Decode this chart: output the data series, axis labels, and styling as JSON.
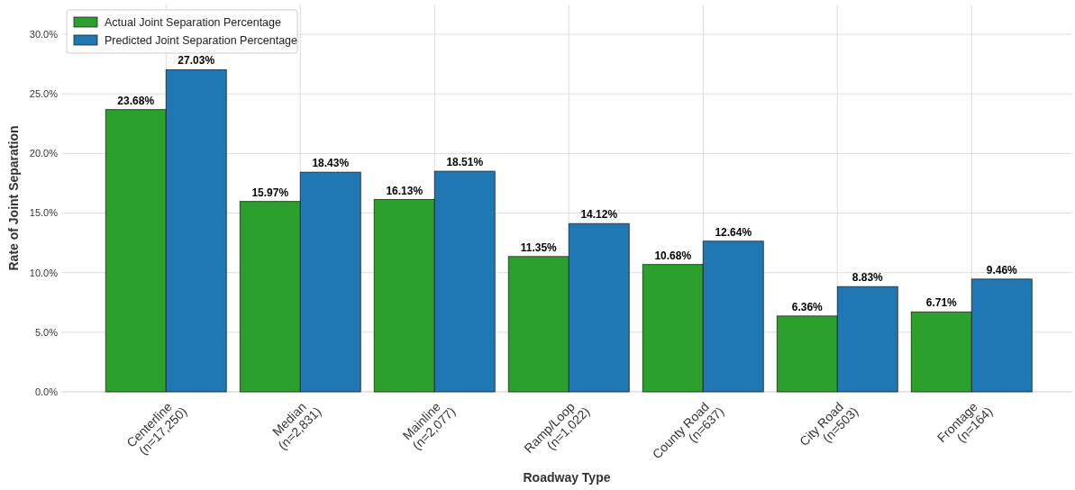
{
  "chart_data": {
    "type": "bar",
    "xlabel": "Roadway Type",
    "ylabel": "Rate of Joint Separation",
    "categories": [
      "Centerline\n(n=17,250)",
      "Median\n(n=2,831)",
      "Mainline\n(n=2,077)",
      "Ramp/Loop\n(n=1,022)",
      "County Road\n(n=637)",
      "City Road\n(n=503)",
      "Frontage\n(n=164)"
    ],
    "series": [
      {
        "name": "Actual Joint Separation Percentage",
        "color": "#2ca02c",
        "values": [
          23.68,
          15.97,
          16.13,
          11.35,
          10.68,
          6.36,
          6.71
        ],
        "value_labels": [
          "23.68%",
          "15.97%",
          "16.13%",
          "11.35%",
          "10.68%",
          "6.36%",
          "6.71%"
        ]
      },
      {
        "name": "Predicted Joint Separation Percentage",
        "color": "#1f77b4",
        "values": [
          27.03,
          18.43,
          18.51,
          14.12,
          12.64,
          8.83,
          9.46
        ],
        "value_labels": [
          "27.03%",
          "18.43%",
          "18.51%",
          "14.12%",
          "12.64%",
          "8.83%",
          "9.46%"
        ]
      }
    ],
    "ylim": [
      0,
      32.5
    ],
    "yticks": [
      {
        "value": 0,
        "label": "0.0%"
      },
      {
        "value": 5,
        "label": "5.0%"
      },
      {
        "value": 10,
        "label": "10.0%"
      },
      {
        "value": 15,
        "label": "15.0%"
      },
      {
        "value": 20,
        "label": "20.0%"
      },
      {
        "value": 25,
        "label": "25.0%"
      },
      {
        "value": 30,
        "label": "30.0%"
      }
    ],
    "grid": true,
    "legend": "top left"
  }
}
